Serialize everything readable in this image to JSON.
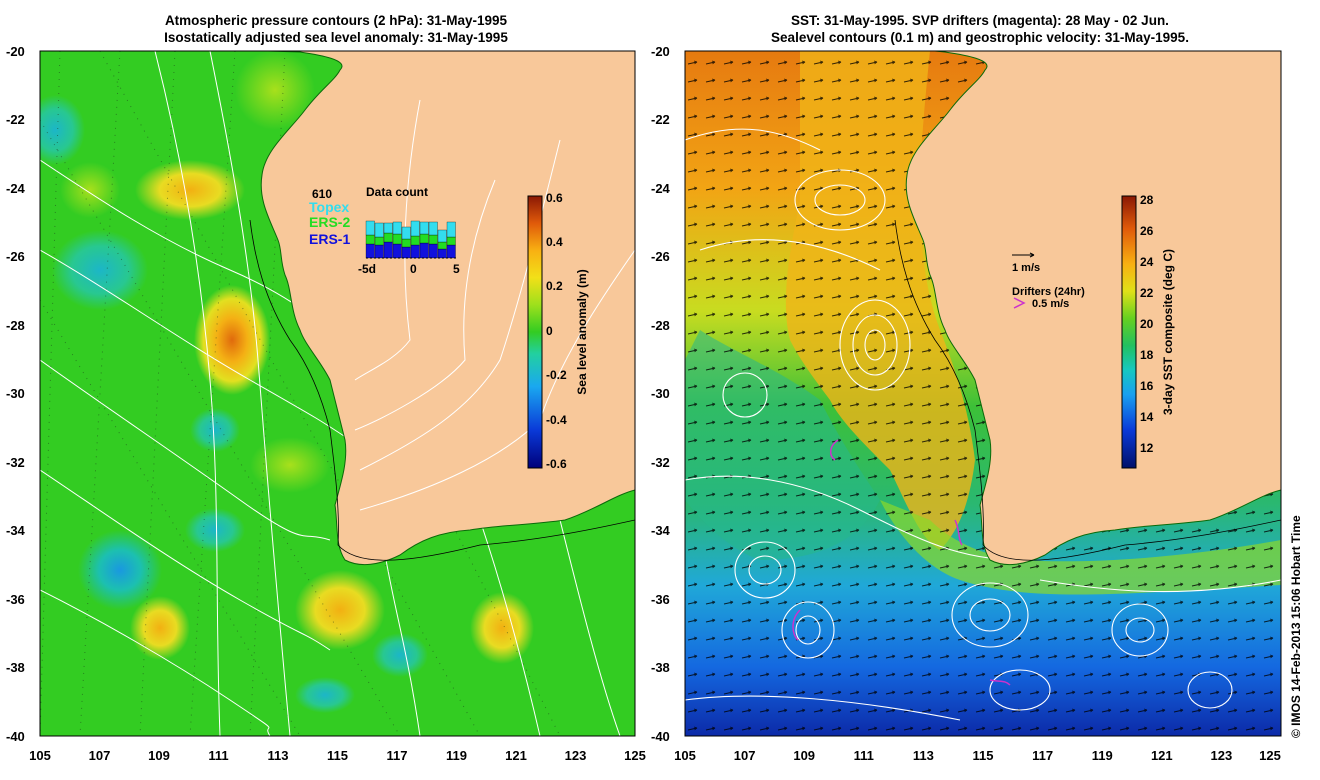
{
  "left": {
    "title_line1": "Atmospheric pressure contours (2 hPa): 31-May-1995",
    "title_line2": "Isostatically adjusted sea level anomaly: 31-May-1995",
    "colorbar": {
      "label": "Sea level anomaly (m)",
      "ticks": [
        "0.6",
        "0.4",
        "0.2",
        "0",
        "-0.2",
        "-0.4",
        "-0.6"
      ],
      "range": [
        -0.6,
        0.6
      ]
    },
    "inset": {
      "title": "Data count",
      "count": "610",
      "legend": [
        {
          "name": "Topex",
          "color": "#33ddee"
        },
        {
          "name": "ERS-2",
          "color": "#22dd22"
        },
        {
          "name": "ERS-1",
          "color": "#1111dd"
        }
      ],
      "xticks": [
        "-5d",
        "0",
        "5"
      ]
    }
  },
  "right": {
    "title_line1": "SST: 31-May-1995. SVP drifters (magenta): 28 May - 02 Jun.",
    "title_line2": "Sealevel contours (0.1 m) and geostrophic velocity: 31-May-1995.",
    "colorbar": {
      "label": "3-day SST composite (deg C)",
      "ticks": [
        "28",
        "26",
        "24",
        "22",
        "20",
        "18",
        "16",
        "14",
        "12"
      ],
      "range": [
        11,
        28.5
      ]
    },
    "legend": {
      "velocity_label": "1 m/s",
      "drifter_title": "Drifters (24hr)",
      "drifter_label": "0.5 m/s"
    }
  },
  "axes": {
    "yticks": [
      "-20",
      "-22",
      "-24",
      "-26",
      "-28",
      "-30",
      "-32",
      "-34",
      "-36",
      "-38",
      "-40"
    ],
    "xticks": [
      "105",
      "107",
      "109",
      "111",
      "113",
      "115",
      "117",
      "119",
      "121",
      "123",
      "125"
    ],
    "lat_range": [
      -40,
      -20
    ],
    "lon_range": [
      105,
      125
    ]
  },
  "credit": "© IMOS 14-Feb-2013 15:06 Hobart Time",
  "colors": {
    "land": "#f8c89a",
    "ocean_green": "#33cc22",
    "coast_fill": "#1fa51f",
    "contour": "#ffffff"
  }
}
